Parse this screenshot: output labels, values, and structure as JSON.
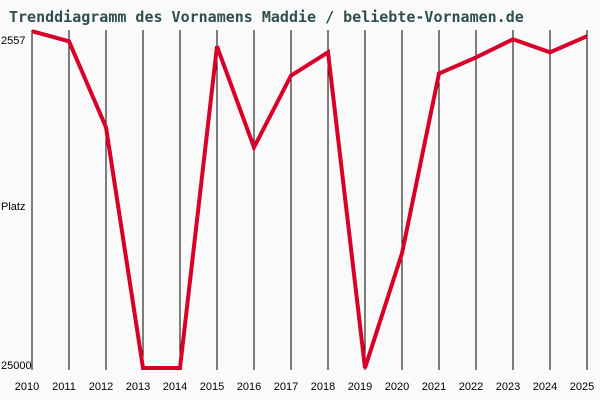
{
  "title": "Trenddiagramm des Vornamens Maddie / beliebte-Vornamen.de",
  "colors": {
    "line": "#d9002a",
    "grid": "#000000",
    "background": "#fafafa",
    "title": "#2f4f4f"
  },
  "chart_data": {
    "type": "line",
    "title": "Trenddiagramm des Vornamens Maddie / beliebte-Vornamen.de",
    "xlabel": "",
    "ylabel": "Platz",
    "y_inverted": true,
    "ylim": [
      2557,
      25000
    ],
    "y_tick_labels": [
      "2557",
      "Platz",
      "25000"
    ],
    "grid": {
      "vertical": true,
      "horizontal": false
    },
    "categories": [
      "2010",
      "2011",
      "2012",
      "2013",
      "2014",
      "2015",
      "2016",
      "2017",
      "2018",
      "2019",
      "2020",
      "2021",
      "2022",
      "2023",
      "2024",
      "2025"
    ],
    "series": [
      {
        "name": "Maddie",
        "values": [
          2300,
          2980,
          8780,
          25000,
          25000,
          3320,
          10130,
          5290,
          3720,
          25000,
          17270,
          5150,
          4070,
          2850,
          3720,
          2640
        ]
      }
    ]
  }
}
